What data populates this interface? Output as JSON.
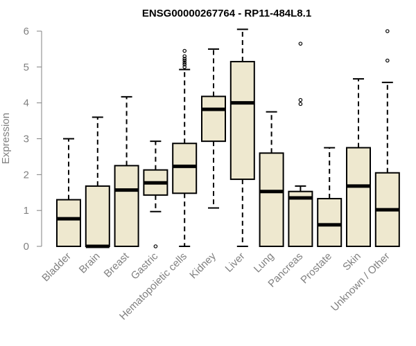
{
  "chart_data": {
    "type": "boxplot",
    "title": "ENSG00000267764 - RP11-484L8.1",
    "xlabel": "",
    "ylabel": "Expression",
    "ylim": [
      0,
      6
    ],
    "yticks": [
      "0",
      "1",
      "2",
      "3",
      "4",
      "5",
      "6"
    ],
    "box_fill": "#EEE8CF",
    "categories": [
      "Bladder",
      "Brain",
      "Breast",
      "Gastric",
      "Hematopoietic cells",
      "Kidney",
      "Liver",
      "Lung",
      "Pancreas",
      "Prostate",
      "Skin",
      "Unknown / Other"
    ],
    "boxes": [
      {
        "name": "Bladder",
        "whisker_low": 0,
        "q1": 0,
        "median": 0.77,
        "q3": 1.3,
        "whisker_high": 3.0,
        "outliers": []
      },
      {
        "name": "Brain",
        "whisker_low": 0,
        "q1": 0,
        "median": 0.0,
        "q3": 1.68,
        "whisker_high": 3.6,
        "outliers": []
      },
      {
        "name": "Breast",
        "whisker_low": 0,
        "q1": 0,
        "median": 1.57,
        "q3": 2.25,
        "whisker_high": 4.17,
        "outliers": []
      },
      {
        "name": "Gastric",
        "whisker_low": 0.97,
        "q1": 1.43,
        "median": 1.77,
        "q3": 2.13,
        "whisker_high": 2.93,
        "outliers": [
          0.0
        ]
      },
      {
        "name": "Hematopoietic cells",
        "whisker_low": 0,
        "q1": 1.48,
        "median": 2.23,
        "q3": 2.87,
        "whisker_high": 4.93,
        "outliers": [
          5.0,
          5.07,
          5.12,
          5.18,
          5.23,
          5.3,
          5.45
        ]
      },
      {
        "name": "Kidney",
        "whisker_low": 1.07,
        "q1": 2.93,
        "median": 3.82,
        "q3": 4.18,
        "whisker_high": 5.5,
        "outliers": []
      },
      {
        "name": "Liver",
        "whisker_low": 0,
        "q1": 1.87,
        "median": 4.0,
        "q3": 5.15,
        "whisker_high": 6.05,
        "outliers": []
      },
      {
        "name": "Lung",
        "whisker_low": 0,
        "q1": 0,
        "median": 1.53,
        "q3": 2.6,
        "whisker_high": 3.75,
        "outliers": []
      },
      {
        "name": "Pancreas",
        "whisker_low": 0,
        "q1": 0,
        "median": 1.35,
        "q3": 1.53,
        "whisker_high": 1.68,
        "outliers": [
          3.97,
          4.08,
          5.65
        ]
      },
      {
        "name": "Prostate",
        "whisker_low": 0,
        "q1": 0,
        "median": 0.6,
        "q3": 1.33,
        "whisker_high": 2.75,
        "outliers": []
      },
      {
        "name": "Skin",
        "whisker_low": 0,
        "q1": 0,
        "median": 1.68,
        "q3": 2.75,
        "whisker_high": 4.67,
        "outliers": []
      },
      {
        "name": "Unknown / Other",
        "whisker_low": 0,
        "q1": 0,
        "median": 1.02,
        "q3": 2.05,
        "whisker_high": 4.57,
        "outliers": [
          5.18,
          6.0
        ]
      }
    ]
  }
}
